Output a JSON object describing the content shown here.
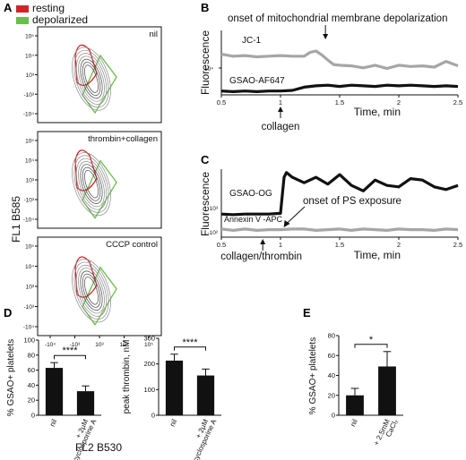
{
  "panel_labels": {
    "A": "A",
    "B": "B",
    "C": "C",
    "D": "D",
    "E": "E"
  },
  "chart_data": [
    {
      "id": "A",
      "type": "scatter",
      "subtype": "flow-cytometry-contour",
      "legend": [
        {
          "name": "resting",
          "color": "#d0242a"
        },
        {
          "name": "depolarized",
          "color": "#6abf4b"
        }
      ],
      "xlabel": "FL2 B530",
      "ylabel": "FL1 B585",
      "x_ticks": [
        "-10⁴",
        "-10³",
        "10³",
        "10⁴",
        "10⁵"
      ],
      "y_ticks": [
        "10⁵",
        "10⁴",
        "10³",
        "-10³",
        "-10⁴"
      ],
      "subpanels": [
        {
          "label": "nil"
        },
        {
          "label": "thrombin+collagen"
        },
        {
          "label": "CCCP control"
        }
      ]
    },
    {
      "id": "B",
      "type": "line",
      "ylabel": "Fluorescence",
      "xlabel": "Time, min",
      "x_ticks": [
        "0.5",
        "1",
        "1.5",
        "2",
        "2.5"
      ],
      "y_tick_label": "10⁴",
      "xlim": [
        0.5,
        2.5
      ],
      "annotation_top": "onset of mitochondrial membrane depolarization",
      "annotation_top_x": 1.38,
      "annotation_bottom": "collagen",
      "annotation_bottom_x": 1.0,
      "series": [
        {
          "name": "JC-1",
          "color": "#a6a6a6",
          "x": [
            0.5,
            0.6,
            0.7,
            0.8,
            0.9,
            1.0,
            1.1,
            1.2,
            1.25,
            1.3,
            1.35,
            1.4,
            1.45,
            1.5,
            1.6,
            1.7,
            1.8,
            1.9,
            2.0,
            2.1,
            2.2,
            2.3,
            2.4,
            2.5
          ],
          "y": [
            0.63,
            0.6,
            0.61,
            0.59,
            0.6,
            0.61,
            0.6,
            0.6,
            0.66,
            0.68,
            0.62,
            0.54,
            0.47,
            0.46,
            0.45,
            0.42,
            0.46,
            0.41,
            0.46,
            0.44,
            0.45,
            0.43,
            0.52,
            0.45
          ]
        },
        {
          "name": "GSAO-AF647",
          "color": "#111111",
          "x": [
            0.5,
            0.6,
            0.7,
            0.8,
            0.9,
            1.0,
            1.1,
            1.2,
            1.3,
            1.4,
            1.5,
            1.6,
            1.7,
            1.8,
            1.9,
            2.0,
            2.1,
            2.2,
            2.3,
            2.4,
            2.5
          ],
          "y": [
            0.06,
            0.05,
            0.06,
            0.05,
            0.06,
            0.06,
            0.07,
            0.12,
            0.14,
            0.15,
            0.13,
            0.15,
            0.14,
            0.13,
            0.15,
            0.14,
            0.15,
            0.14,
            0.13,
            0.14,
            0.13
          ]
        }
      ]
    },
    {
      "id": "C",
      "type": "line",
      "ylabel": "Fluorescence",
      "xlabel": "Time, min",
      "x_ticks": [
        "0.5",
        "1",
        "1.5",
        "2",
        "2.5"
      ],
      "y_tick_labels": [
        "10³",
        "-10²"
      ],
      "xlim": [
        0.5,
        2.5
      ],
      "annotation_ps": "onset of PS exposure",
      "annotation_ps_x": 1.02,
      "annotation_bottom": "collagen/thrombin",
      "annotation_bottom_x": 0.85,
      "series": [
        {
          "name": "GSAO-OG",
          "color": "#111111",
          "x": [
            0.5,
            0.6,
            0.7,
            0.8,
            0.9,
            1.0,
            1.03,
            1.05,
            1.1,
            1.2,
            1.3,
            1.4,
            1.5,
            1.6,
            1.7,
            1.8,
            1.9,
            2.0,
            2.1,
            2.2,
            2.3,
            2.4,
            2.5
          ],
          "y": [
            0.34,
            0.33,
            0.34,
            0.34,
            0.34,
            0.35,
            0.88,
            0.95,
            0.88,
            0.8,
            0.88,
            0.78,
            0.92,
            0.76,
            0.68,
            0.84,
            0.76,
            0.74,
            0.86,
            0.84,
            0.74,
            0.7,
            0.76
          ]
        },
        {
          "name": "Annexin V -APC",
          "color": "#a6a6a6",
          "x": [
            0.5,
            0.6,
            0.7,
            0.8,
            0.9,
            1.0,
            1.1,
            1.2,
            1.3,
            1.4,
            1.5,
            1.6,
            1.7,
            1.8,
            1.9,
            2.0,
            2.1,
            2.2,
            2.3,
            2.4,
            2.5
          ],
          "y": [
            0.12,
            0.1,
            0.12,
            0.1,
            0.11,
            0.11,
            0.12,
            0.12,
            0.1,
            0.11,
            0.12,
            0.1,
            0.12,
            0.11,
            0.1,
            0.12,
            0.11,
            0.11,
            0.1,
            0.12,
            0.11
          ]
        }
      ]
    },
    {
      "id": "D1",
      "type": "bar",
      "ylabel": "% GSAO+ platelets",
      "categories": [
        "nil",
        "+ 2μM cyclosporine A"
      ],
      "values": [
        63,
        32
      ],
      "errors": [
        7,
        7
      ],
      "ylim": [
        0,
        100
      ],
      "y_ticks": [
        "0",
        "20",
        "40",
        "60",
        "80",
        "100"
      ],
      "significance": "****"
    },
    {
      "id": "D2",
      "type": "bar",
      "ylabel": "peak thrombin, nM",
      "categories": [
        "nil",
        "+ 2μM cyclosporine A"
      ],
      "values": [
        213,
        155
      ],
      "errors": [
        25,
        25
      ],
      "ylim": [
        0,
        300
      ],
      "y_ticks": [
        "0",
        "100",
        "200",
        "300"
      ],
      "significance": "****"
    },
    {
      "id": "E",
      "type": "bar",
      "ylabel": "% GSAO+ platelets",
      "categories": [
        "nil",
        "+ 2.5mM CaCl₂"
      ],
      "values": [
        20,
        49
      ],
      "errors": [
        7,
        15
      ],
      "ylim": [
        0,
        80
      ],
      "y_ticks": [
        "0",
        "20",
        "40",
        "60",
        "80"
      ],
      "significance": "*"
    }
  ]
}
